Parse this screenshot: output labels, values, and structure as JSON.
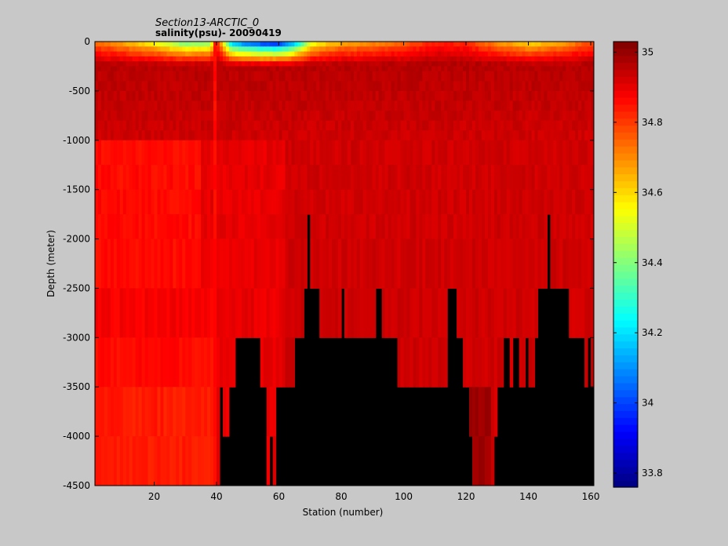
{
  "chart_data": {
    "type": "heatmap",
    "title": "Section13-ARCTIC_0",
    "subtitle": "salinity(psu)- 20090419",
    "xlabel": "Station (number)",
    "ylabel": "Depth (meter)",
    "xlim": [
      1,
      161
    ],
    "ylim": [
      -4500,
      0
    ],
    "xticks": [
      20,
      40,
      60,
      80,
      100,
      120,
      140,
      160
    ],
    "yticks": [
      0,
      -500,
      -1000,
      -1500,
      -2000,
      -2500,
      -3000,
      -3500,
      -4000,
      -4500
    ],
    "colorbar": {
      "range": [
        33.76,
        35.03
      ],
      "ticks": [
        33.8,
        34,
        34.2,
        34.4,
        34.6,
        34.8,
        35
      ],
      "colormap": "jet",
      "nan_color": "#000000"
    },
    "layer_depths": [
      0,
      -50,
      -100,
      -150,
      -200,
      -250,
      -300,
      -400,
      -500,
      -600,
      -700,
      -800,
      -900,
      -1000,
      -1250,
      -1500,
      -1750,
      -2000,
      -2500,
      -3000,
      -3500,
      -4000,
      -4500
    ],
    "surface_salinity_profile": {
      "stations": [
        1,
        10,
        20,
        30,
        38,
        40,
        45,
        50,
        55,
        60,
        65,
        70,
        75,
        80,
        90,
        100,
        110,
        120,
        130,
        140,
        150,
        160
      ],
      "values": [
        34.72,
        34.62,
        34.5,
        34.3,
        34.35,
        34.84,
        34.05,
        33.92,
        33.85,
        33.82,
        34.05,
        34.45,
        34.55,
        34.62,
        34.66,
        34.72,
        34.82,
        34.8,
        34.66,
        34.55,
        34.62,
        34.75
      ]
    },
    "bottom_depth": {
      "stations": [
        1,
        2,
        3,
        4,
        5,
        6,
        7,
        8,
        9,
        10,
        11,
        12,
        13,
        14,
        15,
        16,
        17,
        18,
        19,
        20,
        21,
        22,
        23,
        24,
        25,
        26,
        27,
        28,
        29,
        30,
        31,
        32,
        33,
        34,
        35,
        36,
        37,
        38,
        39,
        40,
        41,
        42,
        43,
        44,
        45,
        46,
        47,
        48,
        49,
        50,
        51,
        52,
        53,
        54,
        55,
        56,
        57,
        58,
        59,
        60,
        61,
        62,
        63,
        64,
        65,
        66,
        67,
        68,
        69,
        70,
        71,
        72,
        73,
        74,
        75,
        76,
        77,
        78,
        79,
        80,
        81,
        82,
        83,
        84,
        85,
        86,
        87,
        88,
        89,
        90,
        91,
        92,
        93,
        94,
        95,
        96,
        97,
        98,
        99,
        100,
        101,
        102,
        103,
        104,
        105,
        106,
        107,
        108,
        109,
        110,
        111,
        112,
        113,
        114,
        115,
        116,
        117,
        118,
        119,
        120,
        121,
        122,
        123,
        124,
        125,
        126,
        127,
        128,
        129,
        130,
        131,
        132,
        133,
        134,
        135,
        136,
        137,
        138,
        139,
        140,
        141,
        142,
        143,
        144,
        145,
        146,
        147,
        148,
        149,
        150,
        151,
        152,
        153,
        154,
        155,
        156,
        157,
        158,
        159,
        160,
        161
      ],
      "depth": [
        -4500,
        -4500,
        -4500,
        -4500,
        -4500,
        -4500,
        -4500,
        -4500,
        -4500,
        -4500,
        -4500,
        -4500,
        -4500,
        -4500,
        -4500,
        -4500,
        -4500,
        -4500,
        -4500,
        -4500,
        -4500,
        -4500,
        -4500,
        -4500,
        -4500,
        -4500,
        -4500,
        -4500,
        -4500,
        -4500,
        -4500,
        -4500,
        -4500,
        -4500,
        -4500,
        -4500,
        -4500,
        -4500,
        -4500,
        -4500,
        -3500,
        -4000,
        -4000,
        -3500,
        -3500,
        -3000,
        -3000,
        -3000,
        -3000,
        -3000,
        -3000,
        -3000,
        -3000,
        -3500,
        -3500,
        -4500,
        -4000,
        -4500,
        -3500,
        -3500,
        -3500,
        -3500,
        -3500,
        -3500,
        -3000,
        -3000,
        -3000,
        -2500,
        -1750,
        -2500,
        -2500,
        -2500,
        -3000,
        -3000,
        -3000,
        -3000,
        -3000,
        -3000,
        -3000,
        -2500,
        -3000,
        -3000,
        -3000,
        -3000,
        -3000,
        -3000,
        -3000,
        -3000,
        -3000,
        -3000,
        -2500,
        -2500,
        -3000,
        -3000,
        -3000,
        -3000,
        -3000,
        -3500,
        -3500,
        -3500,
        -3500,
        -3500,
        -3500,
        -3500,
        -3500,
        -3500,
        -3500,
        -3500,
        -3500,
        -3500,
        -3500,
        -3500,
        -3500,
        -2500,
        -2500,
        -2500,
        -3000,
        -3000,
        -3500,
        -3500,
        -4000,
        -4500,
        -4500,
        -4500,
        -4500,
        -4500,
        -4500,
        -4500,
        -4000,
        -3500,
        -3500,
        -3000,
        -3000,
        -3500,
        -3000,
        -3000,
        -3500,
        -3500,
        -3000,
        -3500,
        -3500,
        -3000,
        -2500,
        -2500,
        -2500,
        -1750,
        -2500,
        -2500,
        -2500,
        -2500,
        -2500,
        -2500,
        -3000,
        -3000,
        -3000,
        -3000,
        -3000,
        -3500,
        -3000,
        -3500,
        -3500,
        -3500,
        -3500,
        -3500,
        -3500,
        -3500,
        -3500,
        -3500,
        -3500
      ]
    }
  }
}
